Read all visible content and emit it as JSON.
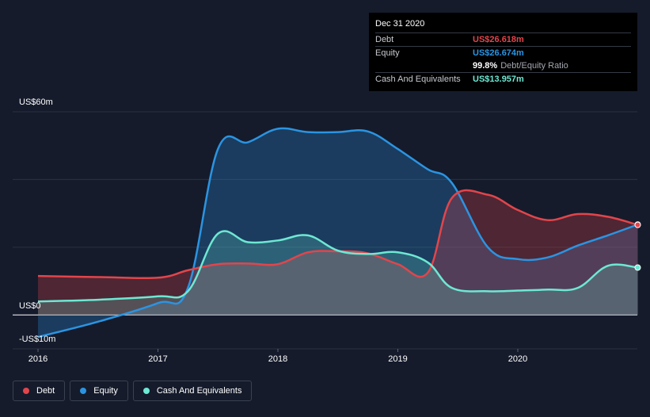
{
  "tooltip": {
    "date": "Dec 31 2020",
    "debt_label": "Debt",
    "debt_value": "US$26.618m",
    "equity_label": "Equity",
    "equity_value": "US$26.674m",
    "ratio_value": "99.8%",
    "ratio_label": "Debt/Equity Ratio",
    "cash_label": "Cash And Equivalents",
    "cash_value": "US$13.957m"
  },
  "colors": {
    "debt": "#e2454b",
    "equity": "#2b94e2",
    "cash": "#6de8d3",
    "background": "#151b2b"
  },
  "chart_data": {
    "type": "area",
    "ylim": [
      -10,
      60
    ],
    "xlim": [
      2016,
      2021
    ],
    "y_tick_labels": [
      "US$60m",
      "US$0",
      "-US$10m"
    ],
    "x_ticks": [
      2016,
      2017,
      2018,
      2019,
      2020
    ],
    "x_tick_labels": [
      "2016",
      "2017",
      "2018",
      "2019",
      "2020"
    ],
    "grid": true,
    "legend_position": "bottom-left",
    "series": [
      {
        "name": "Debt",
        "color_key": "debt",
        "x": [
          2016,
          2016.5,
          2017,
          2017.25,
          2017.5,
          2017.75,
          2018,
          2018.25,
          2018.5,
          2018.75,
          2019,
          2019.25,
          2019.45,
          2019.75,
          2020,
          2020.25,
          2020.5,
          2020.75,
          2021
        ],
        "values": [
          11.5,
          11.2,
          11,
          13.2,
          15,
          15.2,
          15,
          18.5,
          18.8,
          18.2,
          15,
          12.5,
          34.5,
          35.5,
          31,
          28,
          29.8,
          29,
          26.6
        ]
      },
      {
        "name": "Equity",
        "color_key": "equity",
        "x": [
          2016,
          2016.5,
          2017,
          2017.25,
          2017.5,
          2017.75,
          2018,
          2018.25,
          2018.5,
          2018.75,
          2019,
          2019.25,
          2019.45,
          2019.75,
          2020,
          2020.25,
          2020.5,
          2020.75,
          2021
        ],
        "values": [
          -6.5,
          -2,
          3.5,
          8,
          49,
          51,
          55,
          54,
          54,
          54.2,
          49,
          43,
          39,
          20,
          16.5,
          17,
          20.5,
          23.5,
          26.7
        ]
      },
      {
        "name": "Cash And Equivalents",
        "color_key": "cash",
        "x": [
          2016,
          2016.5,
          2017,
          2017.25,
          2017.5,
          2017.75,
          2018,
          2018.25,
          2018.5,
          2018.75,
          2019,
          2019.25,
          2019.45,
          2019.75,
          2020,
          2020.25,
          2020.5,
          2020.75,
          2021
        ],
        "values": [
          4,
          4.5,
          5.5,
          7,
          24,
          21.5,
          22,
          23.5,
          19,
          18,
          18.5,
          15.5,
          8,
          7,
          7.2,
          7.5,
          8,
          14.5,
          14
        ]
      }
    ]
  },
  "legend": {
    "debt": "Debt",
    "equity": "Equity",
    "cash": "Cash And Equivalents"
  }
}
